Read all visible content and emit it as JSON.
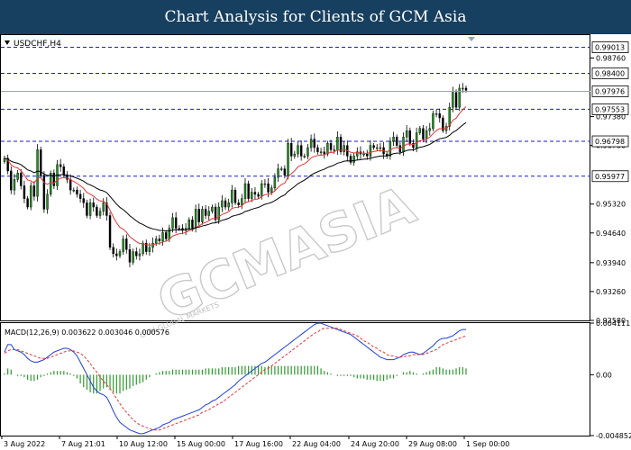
{
  "header": {
    "title": "Chart Analysis for Clients of GCM Asia"
  },
  "watermark": {
    "text": "GCMASIA",
    "subtext": "GCM GLOBAL MARKETS"
  },
  "colors": {
    "candle_body": "#1f8f1f",
    "ma_fast": "#e23838",
    "ma_slow": "#000000",
    "level_line": "#1a1ad4",
    "macd_main": "#1f3fd6",
    "macd_signal": "#e23838",
    "macd_hist": "#2e9a2e",
    "header_bg": "#173f5f"
  },
  "chart_data": [
    {
      "type": "candlestick",
      "title": "USDCHF,H4",
      "x_tick_labels": [
        "3 Aug 2022",
        "7 Aug 21:01",
        "10 Aug 12:00",
        "15 Aug 00:00",
        "17 Aug 16:00",
        "22 Aug 04:00",
        "24 Aug 20:00",
        "29 Aug 08:00",
        "1 Sep 00:00"
      ],
      "y_tick_labels": [
        "0.98760",
        "0.97380",
        "0.96700",
        "0.95320",
        "0.94640",
        "0.93940",
        "0.93260",
        "0.92580"
      ],
      "ylim": [
        0.9258,
        0.993
      ],
      "levels": [
        {
          "label": "0.99013",
          "value": 0.99013
        },
        {
          "label": "0.98400",
          "value": 0.984
        },
        {
          "label": "0.97553",
          "value": 0.97553
        },
        {
          "label": "0.96798",
          "value": 0.96798
        },
        {
          "label": "0.95977",
          "value": 0.95977
        }
      ],
      "current_price": {
        "label": "0.97976",
        "value": 0.97976
      },
      "close": [
        0.964,
        0.961,
        0.9565,
        0.959,
        0.9605,
        0.9575,
        0.9545,
        0.9525,
        0.9575,
        0.955,
        0.966,
        0.96,
        0.952,
        0.9555,
        0.9605,
        0.9575,
        0.9625,
        0.962,
        0.96,
        0.959,
        0.9565,
        0.9565,
        0.9555,
        0.9545,
        0.9535,
        0.9505,
        0.9535,
        0.9525,
        0.9505,
        0.9515,
        0.9535,
        0.9505,
        0.943,
        0.9415,
        0.941,
        0.942,
        0.945,
        0.9425,
        0.9395,
        0.942,
        0.941,
        0.9415,
        0.944,
        0.942,
        0.943,
        0.944,
        0.945,
        0.9445,
        0.9465,
        0.945,
        0.9475,
        0.95,
        0.9475,
        0.9475,
        0.947,
        0.9475,
        0.9495,
        0.9475,
        0.952,
        0.949,
        0.952,
        0.9505,
        0.9515,
        0.9525,
        0.9495,
        0.9525,
        0.954,
        0.9525,
        0.9535,
        0.9565,
        0.9535,
        0.953,
        0.9545,
        0.958,
        0.9545,
        0.956,
        0.9555,
        0.955,
        0.958,
        0.958,
        0.956,
        0.957,
        0.9595,
        0.9615,
        0.9615,
        0.96,
        0.9675,
        0.9645,
        0.965,
        0.967,
        0.9645,
        0.9645,
        0.9665,
        0.9685,
        0.9665,
        0.9655,
        0.9655,
        0.965,
        0.9675,
        0.966,
        0.966,
        0.969,
        0.9655,
        0.967,
        0.9645,
        0.963,
        0.9645,
        0.9655,
        0.965,
        0.965,
        0.9645,
        0.967,
        0.9665,
        0.9665,
        0.9665,
        0.965,
        0.9645,
        0.968,
        0.969,
        0.967,
        0.9655,
        0.969,
        0.9705,
        0.9675,
        0.9665,
        0.97,
        0.971,
        0.9685,
        0.9705,
        0.971,
        0.9745,
        0.9745,
        0.9735,
        0.9705,
        0.9715,
        0.976,
        0.9795,
        0.976,
        0.9805,
        0.9805,
        0.98
      ]
    },
    {
      "type": "line",
      "title": "MACD(12,26,9) 0.003622 0.003046 0.000576",
      "series": [
        {
          "name": "MACD",
          "values": [
            0.0018,
            0.0024,
            0.0024,
            0.002,
            0.0019,
            0.0018,
            0.0016,
            0.0013,
            0.0011,
            0.001,
            0.001,
            0.0011,
            0.0012,
            0.0014,
            0.0016,
            0.0018,
            0.0019,
            0.002,
            0.0021,
            0.0021,
            0.002,
            0.0018,
            0.0015,
            0.001,
            0.0005,
            0.0,
            -0.0005,
            -0.001,
            -0.0013,
            -0.0015,
            -0.0016,
            -0.0018,
            -0.0023,
            -0.0029,
            -0.0034,
            -0.0038,
            -0.004,
            -0.0042,
            -0.0044,
            -0.0045,
            -0.0046,
            -0.0047,
            -0.0047,
            -0.0046,
            -0.0045,
            -0.0044,
            -0.0043,
            -0.0042,
            -0.004,
            -0.0039,
            -0.0038,
            -0.0036,
            -0.0035,
            -0.0034,
            -0.0033,
            -0.0032,
            -0.0031,
            -0.003,
            -0.0029,
            -0.0028,
            -0.0026,
            -0.0024,
            -0.0023,
            -0.0021,
            -0.002,
            -0.0018,
            -0.0016,
            -0.0014,
            -0.0012,
            -0.001,
            -0.0008,
            -0.0005,
            -0.0003,
            -0.0001,
            0.0001,
            0.0003,
            0.0005,
            0.0007,
            0.0009,
            0.001,
            0.0012,
            0.0014,
            0.0016,
            0.0018,
            0.002,
            0.0022,
            0.0024,
            0.0026,
            0.0028,
            0.003,
            0.0032,
            0.0034,
            0.0036,
            0.0038,
            0.004,
            0.0041,
            0.0041,
            0.004,
            0.0039,
            0.0038,
            0.0037,
            0.0036,
            0.0035,
            0.0034,
            0.0033,
            0.0032,
            0.003,
            0.0028,
            0.0026,
            0.0024,
            0.0022,
            0.002,
            0.0018,
            0.0016,
            0.0014,
            0.0013,
            0.0012,
            0.0012,
            0.0012,
            0.0013,
            0.0014,
            0.0016,
            0.0017,
            0.0018,
            0.0018,
            0.0017,
            0.0016,
            0.0017,
            0.0019,
            0.0021,
            0.0023,
            0.0026,
            0.0028,
            0.0029,
            0.0029,
            0.003,
            0.0031,
            0.0033,
            0.0035,
            0.0036,
            0.0036
          ]
        },
        {
          "name": "Signal",
          "values": [
            0.0017,
            0.0019,
            0.002,
            0.002,
            0.002,
            0.0019,
            0.0018,
            0.0017,
            0.0016,
            0.0015,
            0.0014,
            0.0013,
            0.0013,
            0.0013,
            0.0014,
            0.0015,
            0.0016,
            0.0017,
            0.0018,
            0.0019,
            0.0019,
            0.0019,
            0.0018,
            0.0017,
            0.0015,
            0.0012,
            0.0009,
            0.0005,
            0.0002,
            -0.0002,
            -0.0005,
            -0.0008,
            -0.0011,
            -0.0015,
            -0.0019,
            -0.0023,
            -0.0027,
            -0.003,
            -0.0033,
            -0.0036,
            -0.0038,
            -0.004,
            -0.0041,
            -0.0042,
            -0.0043,
            -0.0044,
            -0.0044,
            -0.0044,
            -0.0043,
            -0.0042,
            -0.0041,
            -0.004,
            -0.0039,
            -0.0038,
            -0.0037,
            -0.0036,
            -0.0035,
            -0.0034,
            -0.0033,
            -0.0032,
            -0.003,
            -0.0029,
            -0.0028,
            -0.0026,
            -0.0025,
            -0.0023,
            -0.0022,
            -0.002,
            -0.0018,
            -0.0016,
            -0.0014,
            -0.0012,
            -0.001,
            -0.0008,
            -0.0006,
            -0.0004,
            -0.0002,
            0.0,
            0.0002,
            0.0004,
            0.0005,
            0.0007,
            0.0009,
            0.0011,
            0.0013,
            0.0015,
            0.0017,
            0.0019,
            0.0021,
            0.0023,
            0.0025,
            0.0027,
            0.0029,
            0.0031,
            0.0033,
            0.0034,
            0.0036,
            0.0037,
            0.0037,
            0.0037,
            0.0037,
            0.0037,
            0.0036,
            0.0035,
            0.0034,
            0.0033,
            0.0032,
            0.0031,
            0.0029,
            0.0027,
            0.0026,
            0.0024,
            0.0022,
            0.0021,
            0.0019,
            0.0018,
            0.0016,
            0.0015,
            0.0015,
            0.0014,
            0.0014,
            0.0014,
            0.0015,
            0.0015,
            0.0016,
            0.0016,
            0.0016,
            0.0016,
            0.0017,
            0.0018,
            0.0019,
            0.002,
            0.0022,
            0.0024,
            0.0025,
            0.0026,
            0.0027,
            0.0028,
            0.0029,
            0.003,
            0.0031
          ]
        }
      ],
      "y_tick_labels": [
        "0.004111",
        "0.00",
        "-0.004852"
      ],
      "ylim": [
        -0.004852,
        0.004111
      ]
    }
  ]
}
